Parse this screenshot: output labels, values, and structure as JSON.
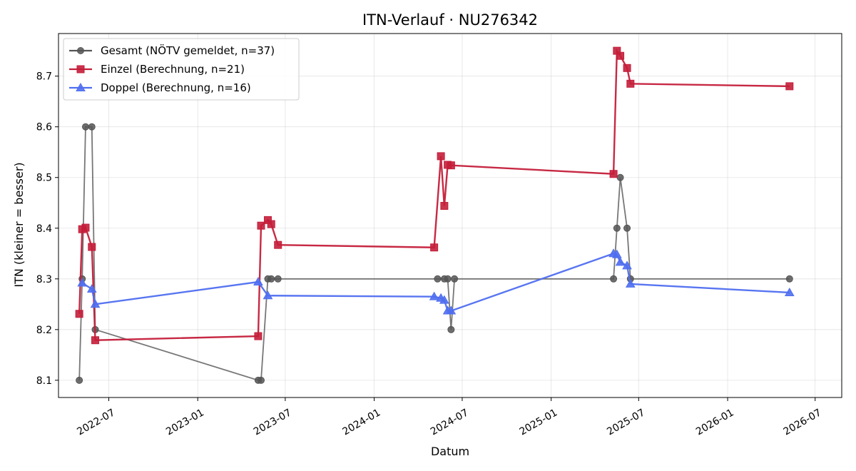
{
  "chart_data": {
    "type": "line",
    "title": "ITN-Verlauf · NU276342",
    "xlabel": "Datum",
    "ylabel": "ITN  (kleiner = besser)",
    "x_type": "date",
    "xlim": [
      "2022-03-19",
      "2026-08-25"
    ],
    "ylim": [
      8.066,
      8.784
    ],
    "x_ticks": [
      "2022-07-01",
      "2023-01-01",
      "2023-07-01",
      "2024-01-01",
      "2024-07-01",
      "2025-01-01",
      "2025-07-01",
      "2026-01-01",
      "2026-07-01"
    ],
    "x_tick_labels": [
      "2022-07",
      "2023-01",
      "2023-07",
      "2024-01",
      "2024-07",
      "2025-01",
      "2025-07",
      "2026-01",
      "2026-07"
    ],
    "y_ticks": [
      8.1,
      8.2,
      8.3,
      8.4,
      8.5,
      8.6,
      8.7
    ],
    "y_tick_labels": [
      "8.1",
      "8.2",
      "8.3",
      "8.4",
      "8.5",
      "8.6",
      "8.7"
    ],
    "grid": true,
    "legend_position": "top-left",
    "series": [
      {
        "name": "Gesamt (NÖTV gemeldet, n=37)",
        "color": "#555555",
        "marker": "circle",
        "points": [
          [
            "2022-05-01",
            8.1
          ],
          [
            "2022-05-07",
            8.3
          ],
          [
            "2022-05-14",
            8.6
          ],
          [
            "2022-05-27",
            8.6
          ],
          [
            "2022-06-03",
            8.2
          ],
          [
            "2023-05-06",
            8.1
          ],
          [
            "2023-05-12",
            8.1
          ],
          [
            "2023-05-26",
            8.3
          ],
          [
            "2023-06-02",
            8.3
          ],
          [
            "2023-06-16",
            8.3
          ],
          [
            "2024-05-11",
            8.3
          ],
          [
            "2024-05-25",
            8.3
          ],
          [
            "2024-06-01",
            8.3
          ],
          [
            "2024-06-08",
            8.2
          ],
          [
            "2024-06-15",
            8.3
          ],
          [
            "2025-05-10",
            8.3
          ],
          [
            "2025-05-17",
            8.4
          ],
          [
            "2025-05-24",
            8.5
          ],
          [
            "2025-06-07",
            8.4
          ],
          [
            "2025-06-14",
            8.3
          ],
          [
            "2026-05-09",
            8.3
          ]
        ]
      },
      {
        "name": "Einzel (Berechnung, n=21)",
        "color": "#c41e3a",
        "marker": "square",
        "points": [
          [
            "2022-05-01",
            8.231
          ],
          [
            "2022-05-07",
            8.398
          ],
          [
            "2022-05-14",
            8.401
          ],
          [
            "2022-05-27",
            8.363
          ],
          [
            "2022-06-03",
            8.179
          ],
          [
            "2023-05-06",
            8.187
          ],
          [
            "2023-05-12",
            8.405
          ],
          [
            "2023-05-26",
            8.416
          ],
          [
            "2023-06-02",
            8.408
          ],
          [
            "2023-06-16",
            8.367
          ],
          [
            "2024-05-04",
            8.362
          ],
          [
            "2024-05-18",
            8.542
          ],
          [
            "2024-05-25",
            8.444
          ],
          [
            "2024-06-01",
            8.525
          ],
          [
            "2024-06-08",
            8.524
          ],
          [
            "2025-05-10",
            8.507
          ],
          [
            "2025-05-17",
            8.75
          ],
          [
            "2025-05-24",
            8.74
          ],
          [
            "2025-06-07",
            8.716
          ],
          [
            "2025-06-14",
            8.685
          ],
          [
            "2026-05-09",
            8.68
          ]
        ]
      },
      {
        "name": "Doppel (Berechnung, n=16)",
        "color": "#4f6ef0",
        "marker": "triangle",
        "points": [
          [
            "2022-05-07",
            8.292
          ],
          [
            "2022-05-27",
            8.28
          ],
          [
            "2022-06-03",
            8.25
          ],
          [
            "2023-05-06",
            8.294
          ],
          [
            "2023-05-26",
            8.267
          ],
          [
            "2024-05-04",
            8.265
          ],
          [
            "2024-05-18",
            8.262
          ],
          [
            "2024-05-25",
            8.258
          ],
          [
            "2024-06-01",
            8.237
          ],
          [
            "2024-06-08",
            8.237
          ],
          [
            "2025-05-10",
            8.35
          ],
          [
            "2025-05-17",
            8.348
          ],
          [
            "2025-05-24",
            8.333
          ],
          [
            "2025-06-07",
            8.326
          ],
          [
            "2025-06-14",
            8.29
          ],
          [
            "2026-05-09",
            8.273
          ]
        ]
      }
    ]
  }
}
